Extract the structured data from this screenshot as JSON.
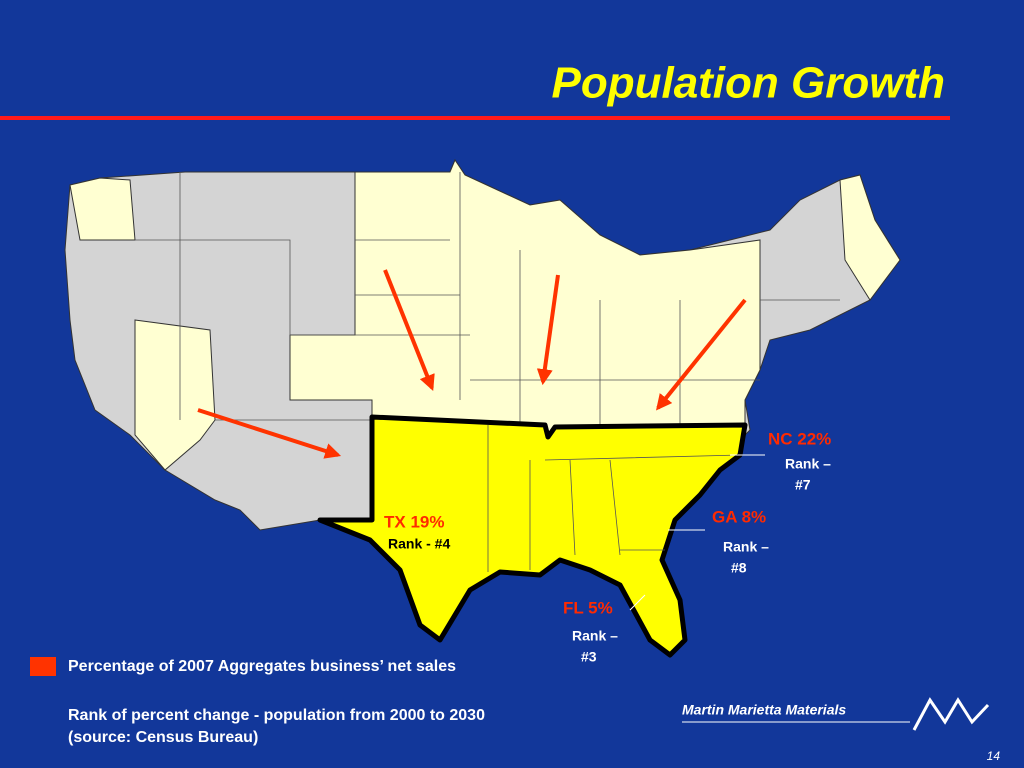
{
  "header": {
    "title": "Population Growth"
  },
  "callouts": [
    {
      "label": "NC 22%",
      "rank": [
        "Rank –",
        "#7"
      ]
    },
    {
      "label": "GA 8%",
      "rank": [
        "Rank –",
        "#8"
      ]
    },
    {
      "label": "FL 5%",
      "rank": [
        "Rank –",
        "#3"
      ]
    },
    {
      "label": "TX 19%",
      "rank": [
        "Rank - #4"
      ]
    }
  ],
  "legend": {
    "text": "Percentage of 2007 Aggregates business’ net sales"
  },
  "notes": [
    "Rank of percent change - population from 2000 to 2030",
    "(source:  Census Bureau)"
  ],
  "footer": {
    "logo": "Martin Marietta Materials",
    "page_number": "14"
  }
}
